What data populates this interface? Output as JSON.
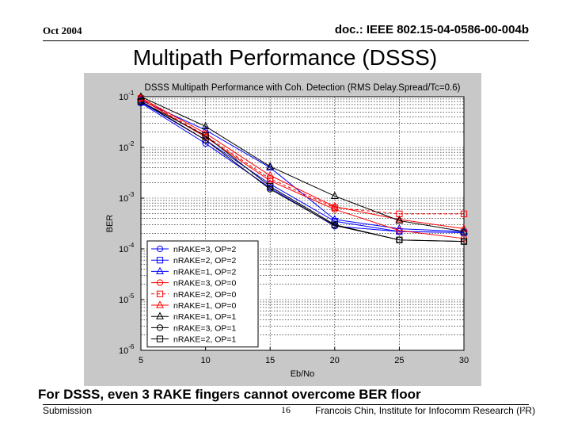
{
  "header": {
    "date": "Oct 2004",
    "doc_id": "doc.: IEEE 802.15-04-0586-00-004b"
  },
  "slide": {
    "title": "Multipath Performance (DSSS)",
    "caption": "For DSSS, even 3 RAKE fingers cannot overcome BER floor"
  },
  "footer": {
    "left": "Submission",
    "page": "16",
    "right": "Francois Chin, Institute for Infocomm Research (I²R)"
  },
  "colors": {
    "blue": "#0000ff",
    "red": "#ff0000",
    "black": "#000000",
    "panel": "#c8c8c8"
  },
  "chart_data": {
    "type": "line",
    "title": "DSSS Multipath Performance with Coh. Detection (RMS Delay.Spread/Tc=0.6)",
    "xlabel": "Eb/No",
    "ylabel": "BER",
    "x": [
      5,
      10,
      15,
      20,
      25,
      30
    ],
    "xlim": [
      5,
      30
    ],
    "xticks": [
      "5",
      "10",
      "15",
      "20",
      "25",
      "30"
    ],
    "yscale": "log",
    "ylim": [
      1e-06,
      0.1
    ],
    "yticks": [
      {
        "base": "10",
        "exp": "-1"
      },
      {
        "base": "10",
        "exp": "-2"
      },
      {
        "base": "10",
        "exp": "-3"
      },
      {
        "base": "10",
        "exp": "-4"
      },
      {
        "base": "10",
        "exp": "-5"
      },
      {
        "base": "10",
        "exp": "-6"
      }
    ],
    "grid": true,
    "legend_position": "bottom-left",
    "series": [
      {
        "name": "nRAKE=3, OP=2",
        "color": "blue",
        "marker": "circle",
        "dash": "solid",
        "values": [
          0.075,
          0.012,
          0.0016,
          0.00028,
          0.00022,
          0.00021
        ]
      },
      {
        "name": "nRAKE=2, OP=2",
        "color": "blue",
        "marker": "square",
        "dash": "solid",
        "values": [
          0.078,
          0.014,
          0.0019,
          0.00035,
          0.00022,
          0.00021
        ]
      },
      {
        "name": "nRAKE=1, OP=2",
        "color": "blue",
        "marker": "triangle",
        "dash": "solid",
        "values": [
          0.085,
          0.022,
          0.004,
          0.00038,
          0.00025,
          0.00022
        ]
      },
      {
        "name": "nRAKE=3, OP=0",
        "color": "red",
        "marker": "circle",
        "dash": "solid",
        "values": [
          0.09,
          0.016,
          0.0022,
          0.0006,
          0.00023,
          0.00016
        ]
      },
      {
        "name": "nRAKE=2, OP=0",
        "color": "red",
        "marker": "square",
        "dash": "dashed",
        "values": [
          0.092,
          0.017,
          0.0024,
          0.00065,
          0.00049,
          0.00049
        ]
      },
      {
        "name": "nRAKE=1, OP=0",
        "color": "red",
        "marker": "triangle",
        "dash": "solid",
        "values": [
          0.095,
          0.019,
          0.0028,
          0.00068,
          0.00038,
          0.00025
        ]
      },
      {
        "name": "nRAKE=1, OP=1",
        "color": "black",
        "marker": "triangle",
        "dash": "solid",
        "values": [
          0.1,
          0.026,
          0.0042,
          0.0011,
          0.00036,
          0.00022
        ]
      },
      {
        "name": "nRAKE=3, OP=1",
        "color": "black",
        "marker": "circle",
        "dash": "solid",
        "values": [
          0.082,
          0.014,
          0.0015,
          0.00029,
          0.00015,
          0.00014
        ]
      },
      {
        "name": "nRAKE=2, OP=1",
        "color": "black",
        "marker": "square",
        "dash": "solid",
        "values": [
          0.08,
          0.017,
          0.0017,
          0.0003,
          0.00015,
          0.00014
        ]
      }
    ]
  }
}
